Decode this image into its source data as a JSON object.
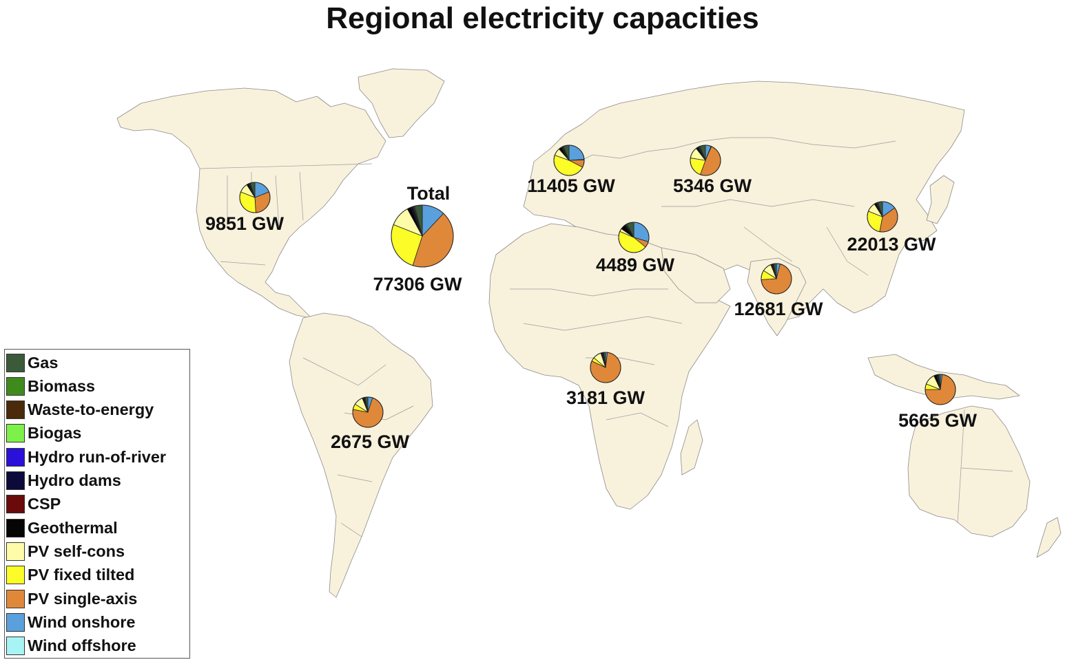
{
  "title": "Regional electricity capacities",
  "legend": [
    {
      "name": "Gas",
      "color": "#3a5a3a"
    },
    {
      "name": "Biomass",
      "color": "#3f8a1c"
    },
    {
      "name": "Waste-to-energy",
      "color": "#4a2a0a"
    },
    {
      "name": "Biogas",
      "color": "#7ef04a"
    },
    {
      "name": "Hydro run-of-river",
      "color": "#2a10d8"
    },
    {
      "name": "Hydro dams",
      "color": "#0c0a3a"
    },
    {
      "name": "CSP",
      "color": "#6a0a0a"
    },
    {
      "name": "Geothermal",
      "color": "#050505"
    },
    {
      "name": "PV self-cons",
      "color": "#fefca8"
    },
    {
      "name": "PV fixed tilted",
      "color": "#fcfc28"
    },
    {
      "name": "PV single-axis",
      "color": "#e0883a"
    },
    {
      "name": "Wind onshore",
      "color": "#5aa0dc"
    },
    {
      "name": "Wind offshore",
      "color": "#a8f4f4"
    }
  ],
  "regions": [
    {
      "id": "north-america",
      "label": "9851 GW",
      "shares": [
        5,
        0.5,
        0.5,
        0,
        0,
        1,
        0,
        2,
        10,
        32,
        30,
        19,
        0
      ]
    },
    {
      "id": "total",
      "sublabel": "Total",
      "label": "77306 GW",
      "shares": [
        4,
        0.5,
        0.5,
        0,
        0,
        1,
        0,
        2,
        11,
        26,
        43,
        12,
        0
      ]
    },
    {
      "id": "europe",
      "label": "11405 GW",
      "shares": [
        6,
        1,
        0.5,
        0,
        0,
        1,
        0,
        3,
        8,
        48,
        8,
        24,
        0.5
      ]
    },
    {
      "id": "eastern-europe",
      "label": "5346 GW",
      "shares": [
        6,
        1,
        0.5,
        0,
        0,
        1,
        0,
        2,
        12,
        22,
        49,
        6,
        0.5
      ]
    },
    {
      "id": "east-asia",
      "label": "22013 GW",
      "shares": [
        5,
        0.5,
        0.5,
        0,
        0,
        1,
        0,
        2,
        10,
        28,
        38,
        15,
        0
      ]
    },
    {
      "id": "mena",
      "label": "4489 GW",
      "shares": [
        7,
        1,
        0.5,
        0,
        0,
        1,
        0,
        5,
        3,
        43,
        6,
        28,
        0
      ]
    },
    {
      "id": "south-asia",
      "label": "12681 GW",
      "shares": [
        3,
        0.5,
        0.5,
        0,
        0,
        1,
        0,
        1,
        10,
        10,
        70,
        4,
        0
      ]
    },
    {
      "id": "south-america",
      "label": "2675 GW",
      "shares": [
        3,
        0.5,
        0.5,
        0,
        0,
        1,
        0,
        1,
        10,
        6,
        73,
        5,
        0
      ]
    },
    {
      "id": "sub-saharan-africa",
      "label": "3181 GW",
      "shares": [
        2,
        0.5,
        0.5,
        0,
        0,
        1,
        0,
        1,
        9,
        4,
        80,
        2,
        0
      ]
    },
    {
      "id": "southeast-asia-oceania",
      "label": "5665 GW",
      "shares": [
        2,
        0.5,
        0.5,
        0,
        0,
        1,
        0,
        3,
        12,
        6,
        73,
        2,
        0
      ]
    }
  ]
}
